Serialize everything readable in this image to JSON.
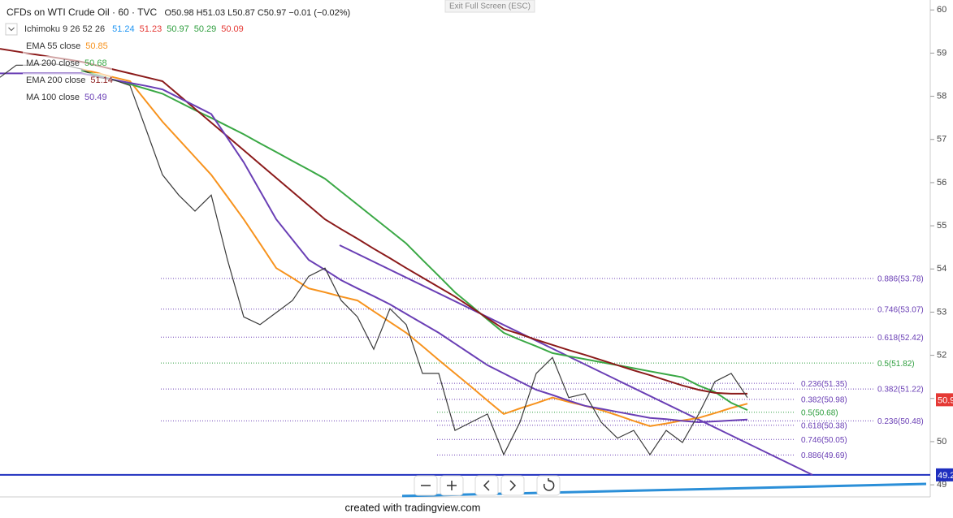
{
  "chart_data": {
    "type": "line",
    "title": "CFDs on WTI Crude Oil · 60 · TVC",
    "ohlc": "O50.98 H51.03 L50.87 C50.97 −0.01 (−0.02%)",
    "exit_hint": "Exit Full Screen (ESC)",
    "footer": "created with tradingview.com",
    "ichimoku": {
      "label": "Ichimoku 9 26 52 26",
      "values": [
        {
          "value": 51.24,
          "color": "#2196f3"
        },
        {
          "value": 51.23,
          "color": "#e53935"
        },
        {
          "value": 50.97,
          "color": "#2e9e3e"
        },
        {
          "value": 50.29,
          "color": "#2e9e3e"
        },
        {
          "value": 50.09,
          "color": "#e53935"
        }
      ]
    },
    "x": [
      0,
      1,
      2,
      3,
      4,
      5,
      6,
      7,
      8,
      9,
      10,
      11,
      12,
      13,
      14,
      15,
      16,
      17,
      18,
      19,
      20,
      21,
      22,
      23,
      24,
      25,
      26,
      27,
      28,
      29,
      30,
      31,
      32,
      33,
      34,
      35,
      36,
      37,
      38,
      39,
      40,
      41,
      42,
      43,
      44,
      45,
      46
    ],
    "xlim": [
      0,
      57
    ],
    "ylim": [
      48.72,
      60.23
    ],
    "yticks": [
      49,
      50,
      51,
      52,
      53,
      54,
      55,
      56,
      57,
      58,
      59,
      60
    ],
    "price": {
      "color": "#3a3a3a",
      "last": 50.97,
      "tag_color": "#e53935",
      "values": [
        58.44,
        58.72,
        58.72,
        58.76,
        58.72,
        58.63,
        58.44,
        58.38,
        58.25,
        57.22,
        56.18,
        55.71,
        55.34,
        55.71,
        54.21,
        52.89,
        52.71,
        52.99,
        53.27,
        53.83,
        54.02,
        53.27,
        52.89,
        52.14,
        53.08,
        52.71,
        51.58,
        51.58,
        50.26,
        50.45,
        50.64,
        49.7,
        50.45,
        51.58,
        51.95,
        51.02,
        51.11,
        50.45,
        50.08,
        50.26,
        49.7,
        50.26,
        49.98,
        50.64,
        51.39,
        51.58,
        51.02
      ]
    },
    "series": [
      {
        "name": "EMA 55 close",
        "last": 50.85,
        "color": "#f7931e",
        "values": [
          null,
          null,
          null,
          null,
          null,
          58.63,
          58.54,
          58.44,
          58.35,
          57.88,
          57.41,
          57.0,
          56.59,
          56.18,
          55.67,
          55.15,
          54.59,
          54.02,
          53.79,
          53.55,
          53.46,
          53.36,
          53.27,
          53.02,
          52.77,
          52.52,
          52.21,
          51.89,
          51.58,
          51.27,
          50.95,
          50.64,
          50.77,
          50.89,
          51.02,
          50.92,
          50.83,
          50.73,
          50.61,
          50.48,
          50.36,
          50.42,
          50.49,
          50.55,
          50.66,
          50.78,
          50.88
        ]
      },
      {
        "name": "MA 200 close",
        "last": 50.68,
        "color": "#3aa845",
        "values": [
          null,
          null,
          null,
          null,
          null,
          58.6,
          58.49,
          58.38,
          58.28,
          58.17,
          58.06,
          57.87,
          57.68,
          57.5,
          57.31,
          57.12,
          56.91,
          56.71,
          56.5,
          56.3,
          56.09,
          55.79,
          55.49,
          55.19,
          54.89,
          54.59,
          54.21,
          53.84,
          53.46,
          53.15,
          52.83,
          52.52,
          52.36,
          52.21,
          52.05,
          51.98,
          51.91,
          51.84,
          51.77,
          51.7,
          51.63,
          51.56,
          51.49,
          51.3,
          51.15,
          50.9,
          50.73
        ]
      },
      {
        "name": "EMA 200 close",
        "last": 51.14,
        "color": "#8b1a1a",
        "values": [
          59.1,
          59.04,
          58.98,
          58.92,
          58.86,
          58.8,
          58.71,
          58.62,
          58.53,
          58.44,
          58.35,
          58.03,
          57.71,
          57.39,
          57.07,
          56.75,
          56.43,
          56.11,
          55.79,
          55.47,
          55.15,
          54.92,
          54.7,
          54.47,
          54.25,
          54.02,
          53.8,
          53.58,
          53.36,
          53.11,
          52.86,
          52.61,
          52.49,
          52.36,
          52.24,
          52.12,
          52.01,
          51.89,
          51.77,
          51.65,
          51.54,
          51.42,
          51.3,
          51.2,
          51.13,
          51.11,
          51.11
        ]
      },
      {
        "name": "MA 100 close",
        "last": 50.49,
        "color": "#6a3fb5",
        "values": [
          58.53,
          58.53,
          58.53,
          58.53,
          58.53,
          58.53,
          58.46,
          58.38,
          58.31,
          58.24,
          58.16,
          57.97,
          57.78,
          57.59,
          57.03,
          56.47,
          55.81,
          55.15,
          54.68,
          54.21,
          53.98,
          53.74,
          53.55,
          53.37,
          53.18,
          52.96,
          52.74,
          52.52,
          52.27,
          52.02,
          51.77,
          51.58,
          51.39,
          51.2,
          51.08,
          50.95,
          50.83,
          50.76,
          50.69,
          50.62,
          50.55,
          50.52,
          50.48,
          50.45,
          50.47,
          50.49,
          50.51
        ]
      }
    ],
    "trendlines": [
      {
        "color": "#6a3fb5",
        "x": [
          20.9,
          50
        ],
        "y": [
          54.55,
          49.23
        ]
      },
      {
        "color": "#2b8fd8",
        "x": [
          24.75,
          57
        ],
        "y": [
          48.74,
          49.02
        ]
      }
    ],
    "hline": {
      "value": 49.23,
      "color": "#1f2fbf"
    },
    "fib_left": [
      {
        "value": 51.35,
        "label": "0.236(51.35)",
        "color": "#6a3fb5"
      },
      {
        "value": 50.98,
        "label": "0.382(50.98)",
        "color": "#6a3fb5"
      },
      {
        "value": 50.68,
        "label": "0.5(50.68)",
        "color": "#2e9e3e"
      },
      {
        "value": 50.38,
        "label": "0.618(50.38)",
        "color": "#6a3fb5"
      },
      {
        "value": 50.05,
        "label": "0.746(50.05)",
        "color": "#6a3fb5"
      },
      {
        "value": 49.69,
        "label": "0.886(49.69)",
        "color": "#6a3fb5"
      }
    ],
    "fib_right": [
      {
        "value": 53.78,
        "label": "0.886(53.78)",
        "color": "#6a3fb5"
      },
      {
        "value": 53.07,
        "label": "0.746(53.07)",
        "color": "#6a3fb5"
      },
      {
        "value": 52.42,
        "label": "0.618(52.42)",
        "color": "#6a3fb5"
      },
      {
        "value": 51.82,
        "label": "0.5(51.82)",
        "color": "#2e9e3e"
      },
      {
        "value": 51.22,
        "label": "0.382(51.22)",
        "color": "#6a3fb5"
      },
      {
        "value": 50.48,
        "label": "0.236(50.48)",
        "color": "#6a3fb5"
      }
    ]
  }
}
